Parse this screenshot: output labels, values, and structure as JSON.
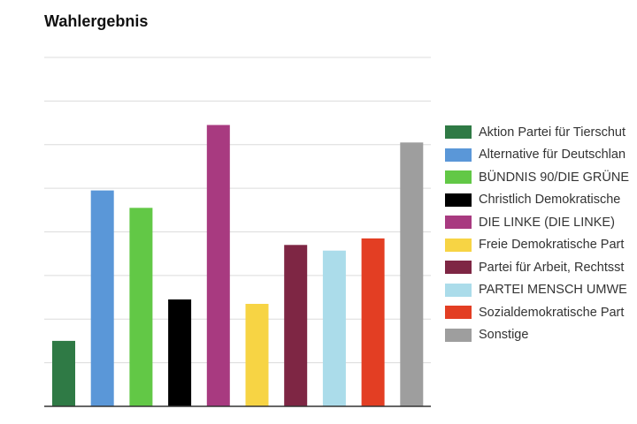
{
  "chart_data": {
    "type": "bar",
    "title": "Wahlergebnis",
    "xlabel": "",
    "ylabel": "",
    "ylim": [
      0,
      8
    ],
    "grid": true,
    "legend_position": "right",
    "categories": [
      "Aktion Partei für Tierschut",
      "Alternative für Deutschlan",
      "BÜNDNIS 90/DIE GRÜNE",
      "Christlich Demokratische",
      "DIE LINKE (DIE LINKE)",
      "Freie Demokratische Part",
      "Partei für Arbeit, Rechtsst",
      "PARTEI MENSCH UMWE",
      "Sozialdemokratische Part",
      "Sonstige"
    ],
    "values": [
      1.5,
      4.95,
      4.55,
      2.45,
      6.45,
      2.35,
      3.7,
      3.57,
      3.85,
      6.05
    ],
    "colors": [
      "#2f7a45",
      "#5a97d8",
      "#62c846",
      "#000000",
      "#a83a80",
      "#f7d444",
      "#7e2644",
      "#abdcea",
      "#e33e23",
      "#9e9e9e"
    ]
  }
}
